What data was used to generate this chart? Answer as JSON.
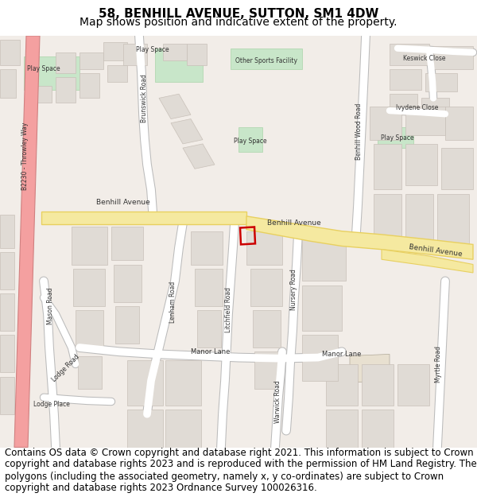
{
  "title_line1": "58, BENHILL AVENUE, SUTTON, SM1 4DW",
  "title_line2": "Map shows position and indicative extent of the property.",
  "footer_text": "Contains OS data © Crown copyright and database right 2021. This information is subject to Crown copyright and database rights 2023 and is reproduced with the permission of HM Land Registry. The polygons (including the associated geometry, namely x, y co-ordinates) are subject to Crown copyright and database rights 2023 Ordnance Survey 100026316.",
  "title_fontsize": 11,
  "subtitle_fontsize": 10,
  "footer_fontsize": 8.5,
  "map_background": "#f0ece8",
  "figure_bg": "#ffffff",
  "road_yellow": "#f5e9a0",
  "road_yellow_stroke": "#e8d060",
  "green_areas": "#c8e6c9",
  "building_color": "#e0dbd5",
  "building_stroke": "#c8c0b8",
  "plot_color": "#cc0000",
  "throwley_fill": "#f4a0a0",
  "throwley_stroke": "#d08080"
}
